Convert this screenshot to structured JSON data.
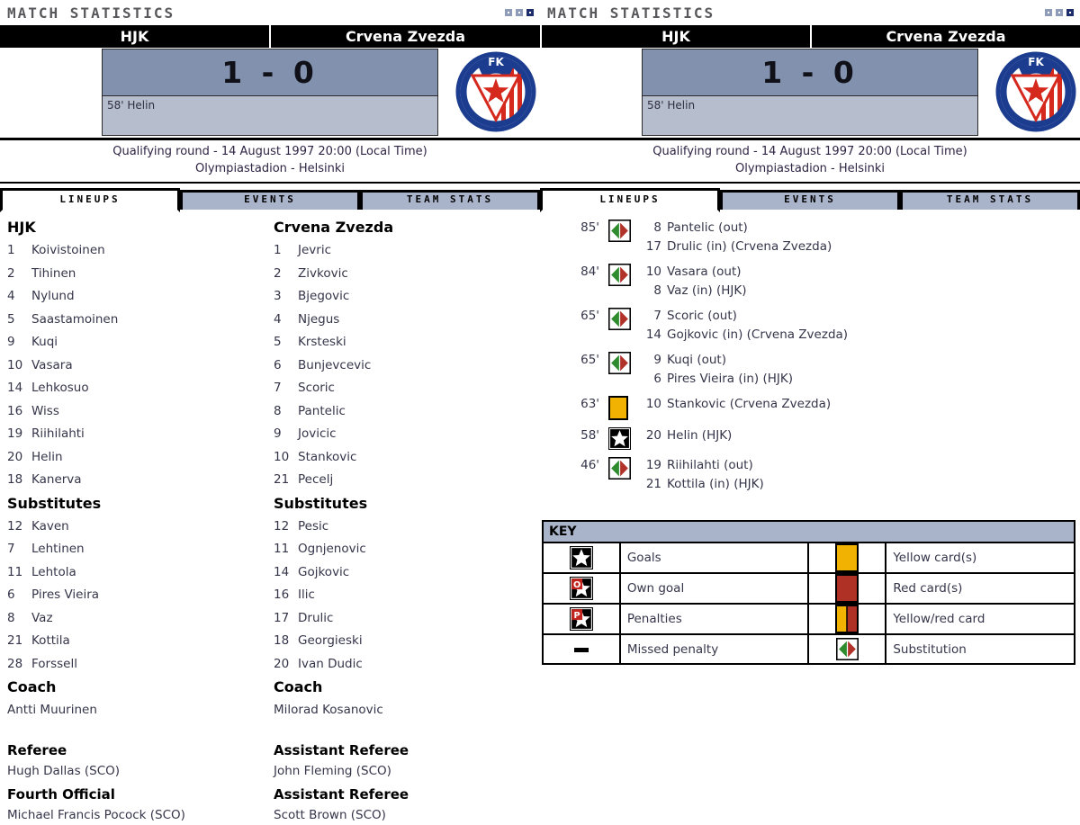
{
  "header": {
    "title": "MATCH STATISTICS"
  },
  "match": {
    "home": "HJK",
    "away": "Crvena Zvezda",
    "score": "1 - 0",
    "scorers": "58' Helin",
    "round_line": "Qualifying round - 14 August 1997 20:00 (Local Time)",
    "venue_line": "Olympiastadion - Helsinki"
  },
  "tabs": [
    "LINEUPS",
    "EVENTS",
    "TEAM STATS"
  ],
  "labels": {
    "substitutes": "Substitutes",
    "coach": "Coach"
  },
  "lineups": {
    "home": {
      "team": "HJK",
      "players": [
        {
          "n": "1",
          "name": "Koivistoinen"
        },
        {
          "n": "2",
          "name": "Tihinen"
        },
        {
          "n": "4",
          "name": "Nylund"
        },
        {
          "n": "5",
          "name": "Saastamoinen"
        },
        {
          "n": "9",
          "name": "Kuqi"
        },
        {
          "n": "10",
          "name": "Vasara"
        },
        {
          "n": "14",
          "name": "Lehkosuo"
        },
        {
          "n": "16",
          "name": "Wiss"
        },
        {
          "n": "19",
          "name": "Riihilahti"
        },
        {
          "n": "20",
          "name": "Helin"
        },
        {
          "n": "18",
          "name": "Kanerva"
        }
      ],
      "subs": [
        {
          "n": "12",
          "name": "Kaven"
        },
        {
          "n": "7",
          "name": "Lehtinen"
        },
        {
          "n": "11",
          "name": "Lehtola"
        },
        {
          "n": "6",
          "name": "Pires Vieira"
        },
        {
          "n": "8",
          "name": "Vaz"
        },
        {
          "n": "21",
          "name": "Kottila"
        },
        {
          "n": "28",
          "name": "Forssell"
        }
      ],
      "coach": "Antti Muurinen"
    },
    "away": {
      "team": "Crvena Zvezda",
      "players": [
        {
          "n": "1",
          "name": "Jevric"
        },
        {
          "n": "2",
          "name": "Zivkovic"
        },
        {
          "n": "3",
          "name": "Bjegovic"
        },
        {
          "n": "4",
          "name": "Njegus"
        },
        {
          "n": "5",
          "name": "Krsteski"
        },
        {
          "n": "6",
          "name": "Bunjevcevic"
        },
        {
          "n": "7",
          "name": "Scoric"
        },
        {
          "n": "8",
          "name": "Pantelic"
        },
        {
          "n": "9",
          "name": "Jovicic"
        },
        {
          "n": "10",
          "name": "Stankovic"
        },
        {
          "n": "21",
          "name": "Pecelj"
        }
      ],
      "subs": [
        {
          "n": "12",
          "name": "Pesic"
        },
        {
          "n": "11",
          "name": "Ognjenovic"
        },
        {
          "n": "14",
          "name": "Gojkovic"
        },
        {
          "n": "16",
          "name": "Ilic"
        },
        {
          "n": "17",
          "name": "Drulic"
        },
        {
          "n": "18",
          "name": "Georgieski"
        },
        {
          "n": "20",
          "name": "Ivan Dudic"
        }
      ],
      "coach": "Milorad Kosanovic"
    }
  },
  "officials": {
    "col1": [
      {
        "role": "Referee",
        "name": "Hugh Dallas (SCO)"
      },
      {
        "role": "Fourth Official",
        "name": "Michael Francis Pocock (SCO)"
      }
    ],
    "col2": [
      {
        "role": "Assistant Referee",
        "name": "John Fleming (SCO)"
      },
      {
        "role": "Assistant Referee",
        "name": "Scott Brown (SCO)"
      }
    ]
  },
  "events": [
    {
      "minute": "85'",
      "icon": "substitution",
      "lines": [
        {
          "num": "8",
          "text": "Pantelic (out)"
        },
        {
          "num": "17",
          "text": "Drulic (in) (Crvena Zvezda)"
        }
      ]
    },
    {
      "minute": "84'",
      "icon": "substitution",
      "lines": [
        {
          "num": "10",
          "text": "Vasara (out)"
        },
        {
          "num": "8",
          "text": "Vaz (in) (HJK)"
        }
      ]
    },
    {
      "minute": "65'",
      "icon": "substitution",
      "lines": [
        {
          "num": "7",
          "text": "Scoric (out)"
        },
        {
          "num": "14",
          "text": "Gojkovic (in) (Crvena Zvezda)"
        }
      ]
    },
    {
      "minute": "65'",
      "icon": "substitution",
      "lines": [
        {
          "num": "9",
          "text": "Kuqi (out)"
        },
        {
          "num": "6",
          "text": "Pires Vieira (in) (HJK)"
        }
      ]
    },
    {
      "minute": "63'",
      "icon": "yellow-card",
      "lines": [
        {
          "num": "10",
          "text": "Stankovic (Crvena Zvezda)"
        }
      ]
    },
    {
      "minute": "58'",
      "icon": "goal",
      "lines": [
        {
          "num": "20",
          "text": "Helin (HJK)"
        }
      ]
    },
    {
      "minute": "46'",
      "icon": "substitution",
      "lines": [
        {
          "num": "19",
          "text": "Riihilahti (out)"
        },
        {
          "num": "21",
          "text": "Kottila (in) (HJK)"
        }
      ]
    }
  ],
  "key": {
    "title": "KEY",
    "rows": [
      {
        "left": {
          "icon": "goal",
          "label": "Goals"
        },
        "right": {
          "icon": "yellow-card",
          "label": "Yellow card(s)"
        }
      },
      {
        "left": {
          "icon": "own-goal",
          "label": "Own goal"
        },
        "right": {
          "icon": "red-card",
          "label": "Red card(s)"
        }
      },
      {
        "left": {
          "icon": "penalty",
          "label": "Penalties"
        },
        "right": {
          "icon": "yellow-red-card",
          "label": "Yellow/red card"
        }
      },
      {
        "left": {
          "icon": "missed-penalty",
          "label": "Missed penalty"
        },
        "right": {
          "icon": "substitution",
          "label": "Substitution"
        }
      }
    ]
  },
  "colors": {
    "steel_blue": "#A9B3C9",
    "score_top": "#8191AE",
    "score_bottom": "#B6BDCD",
    "yellow_card": "#F2B202",
    "red_card": "#AF3126",
    "sub_green": "#2E8B2E",
    "sub_red": "#B03228",
    "badge_blue": "#1b3c8f",
    "badge_red": "#d6291e",
    "deco_navy": "#1D2D6B"
  }
}
